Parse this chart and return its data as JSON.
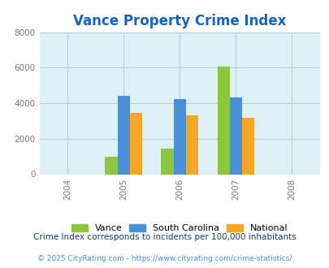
{
  "title": "Vance Property Crime Index",
  "title_color": "#1565C0",
  "years": [
    2004,
    2005,
    2006,
    2007,
    2008
  ],
  "bar_years": [
    2005,
    2006,
    2007
  ],
  "vance": [
    1000,
    1450,
    6050
  ],
  "south_carolina": [
    4400,
    4250,
    4300
  ],
  "national": [
    3450,
    3300,
    3200
  ],
  "colors": {
    "vance": "#8DC63F",
    "south_carolina": "#4A90D9",
    "national": "#F5A623"
  },
  "ylim": [
    0,
    8000
  ],
  "yticks": [
    0,
    2000,
    4000,
    6000,
    8000
  ],
  "plot_bg_color": "#DCF0F5",
  "fig_bg_color": "#FFFFFF",
  "legend_labels": [
    "Vance",
    "South Carolina",
    "National"
  ],
  "footnote1": "Crime Index corresponds to incidents per 100,000 inhabitants",
  "footnote2": "© 2025 CityRating.com - https://www.cityrating.com/crime-statistics/",
  "footnote1_color": "#1a3a5c",
  "footnote2_color": "#4A90D9",
  "bar_width": 0.22
}
